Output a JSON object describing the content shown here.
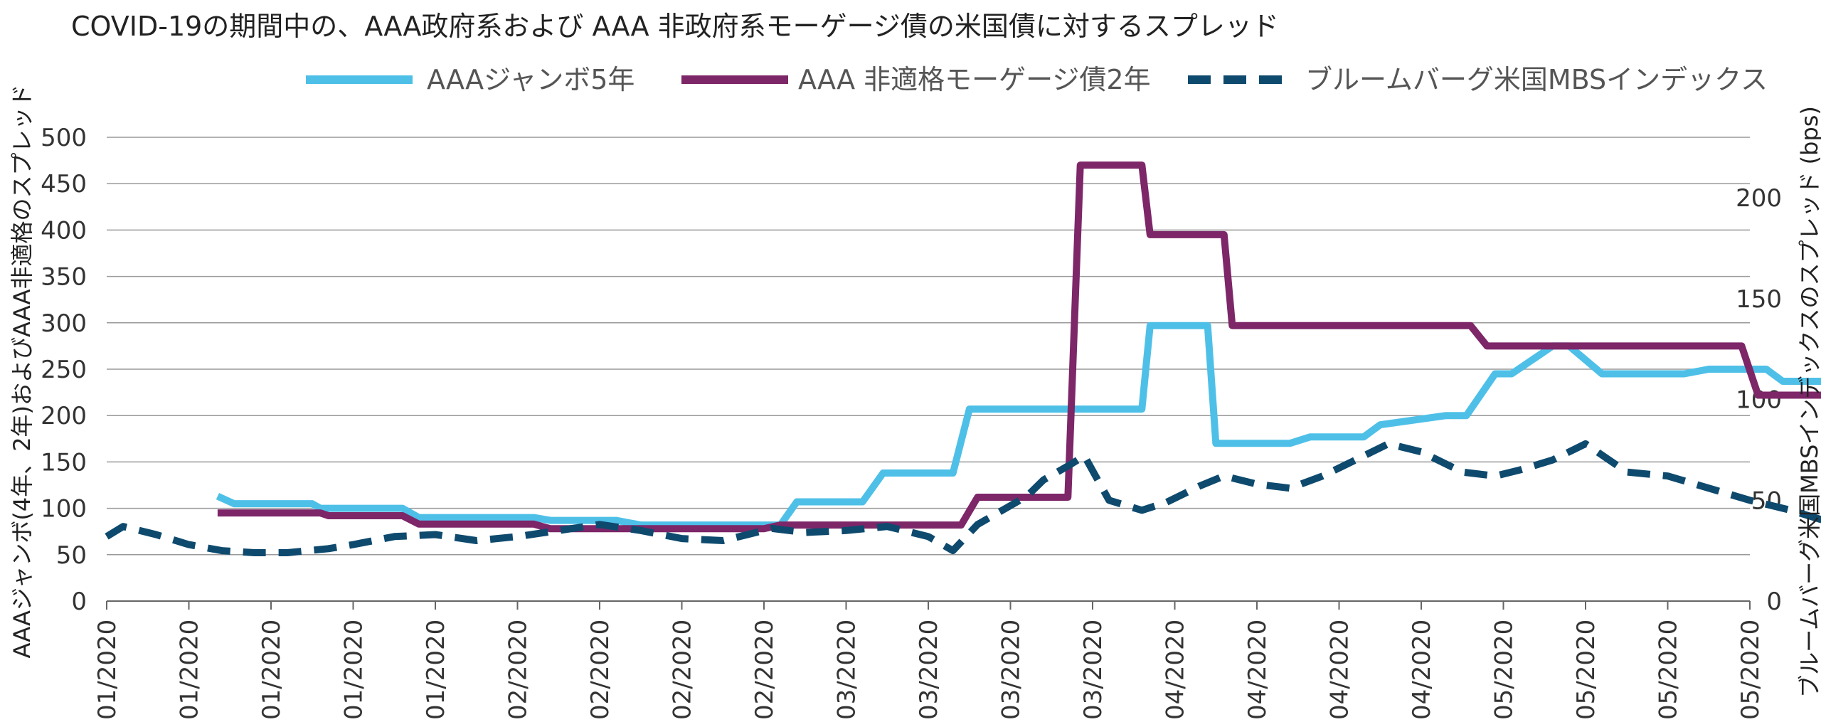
{
  "chart_data": {
    "type": "line",
    "title": "COVID-19の期間中の、AAA政府系および AAA 非政府系モーゲージ債の米国債に対するスプレッド",
    "ylabel_left": "AAAジャンボ(4年、2年)およびAAA非適格のスプレッド",
    "ylabel_right": "ブルームバーグ米国MBSインデックスのスプレッド (bps)",
    "ylim_left": [
      0,
      500
    ],
    "yticks_left": [
      0,
      50,
      100,
      150,
      200,
      250,
      300,
      350,
      400,
      450,
      500
    ],
    "ylim_right": [
      0,
      230
    ],
    "yticks_right": [
      0,
      50,
      100,
      150,
      200
    ],
    "xtick_labels": [
      "01/2020",
      "01/2020",
      "01/2020",
      "01/2020",
      "01/2020",
      "02/2020",
      "02/2020",
      "02/2020",
      "02/2020",
      "03/2020",
      "03/2020",
      "03/2020",
      "03/2020",
      "04/2020",
      "04/2020",
      "04/2020",
      "04/2020",
      "05/2020",
      "05/2020",
      "05/2020",
      "05/2020"
    ],
    "grid": "horizontal",
    "legend_position": "top",
    "series": [
      {
        "name": "AAAジャンボ5年",
        "color": "#4ec0e8",
        "style": "solid",
        "axis": "left",
        "x": [
          1.35,
          1.55,
          2.5,
          2.6,
          3.6,
          3.8,
          5.2,
          5.4,
          6.2,
          6.5,
          8.2,
          8.4,
          9.2,
          9.45,
          10.3,
          10.5,
          11.6,
          11.7,
          12.6,
          12.7,
          13.4,
          13.5,
          14.4,
          14.65,
          15.3,
          15.5,
          16.3,
          16.55,
          16.9,
          17.1,
          17.6,
          17.8,
          18.2,
          18.4,
          19.2,
          19.5,
          20.2,
          20.4,
          21.6,
          21.7
        ],
        "y": [
          113,
          105,
          105,
          100,
          100,
          90,
          90,
          87,
          87,
          82,
          82,
          107,
          107,
          138,
          138,
          207,
          207,
          207,
          207,
          297,
          297,
          170,
          170,
          177,
          177,
          190,
          200,
          200,
          245,
          245,
          275,
          275,
          245,
          245,
          245,
          250,
          250,
          237,
          237,
          214
        ]
      },
      {
        "name": "AAA 非適格モーゲージ債2年",
        "color": "#7d2668",
        "style": "solid",
        "axis": "left",
        "x": [
          1.35,
          2.6,
          2.7,
          3.6,
          3.8,
          5.2,
          5.4,
          8.0,
          8.2,
          10.4,
          10.6,
          11.2,
          11.4,
          11.7,
          11.85,
          12.6,
          12.7,
          13.6,
          13.7,
          16.6,
          16.8,
          18.0,
          18.2,
          19.9,
          20.1,
          20.9,
          21.1,
          21.6,
          21.7
        ],
        "y": [
          95,
          95,
          92,
          92,
          83,
          83,
          78,
          78,
          82,
          82,
          112,
          112,
          112,
          112,
          470,
          470,
          395,
          395,
          297,
          297,
          275,
          275,
          275,
          275,
          222,
          222,
          215,
          215,
          185
        ]
      },
      {
        "name": "ブルームバーグ米国MBSインデックス",
        "color": "#0e4a6e",
        "style": "dashed",
        "axis": "right",
        "x": [
          0,
          0.2,
          0.6,
          1.0,
          1.4,
          1.8,
          2.2,
          2.7,
          3.0,
          3.5,
          4.0,
          4.5,
          5.0,
          5.5,
          6.0,
          6.5,
          7.0,
          7.5,
          7.8,
          8.1,
          8.5,
          9.0,
          9.5,
          10.0,
          10.3,
          10.6,
          10.9,
          11.2,
          11.4,
          11.7,
          11.9,
          12.2,
          12.6,
          12.9,
          13.3,
          13.6,
          14.0,
          14.4,
          14.8,
          15.2,
          15.6,
          16.0,
          16.5,
          16.9,
          17.2,
          17.6,
          18.0,
          18.5,
          19.0,
          19.5,
          20.0,
          20.5,
          20.9,
          21.5,
          21.7
        ],
        "y": [
          32,
          37,
          33,
          28,
          25,
          24,
          24,
          26,
          28,
          32,
          33,
          30,
          32,
          35,
          38,
          35,
          31,
          30,
          33,
          36,
          34,
          35,
          37,
          32,
          25,
          38,
          45,
          52,
          60,
          67,
          72,
          50,
          45,
          49,
          57,
          62,
          58,
          56,
          62,
          70,
          78,
          74,
          64,
          62,
          65,
          70,
          78,
          64,
          62,
          56,
          50,
          45,
          40,
          37,
          36
        ]
      }
    ]
  }
}
